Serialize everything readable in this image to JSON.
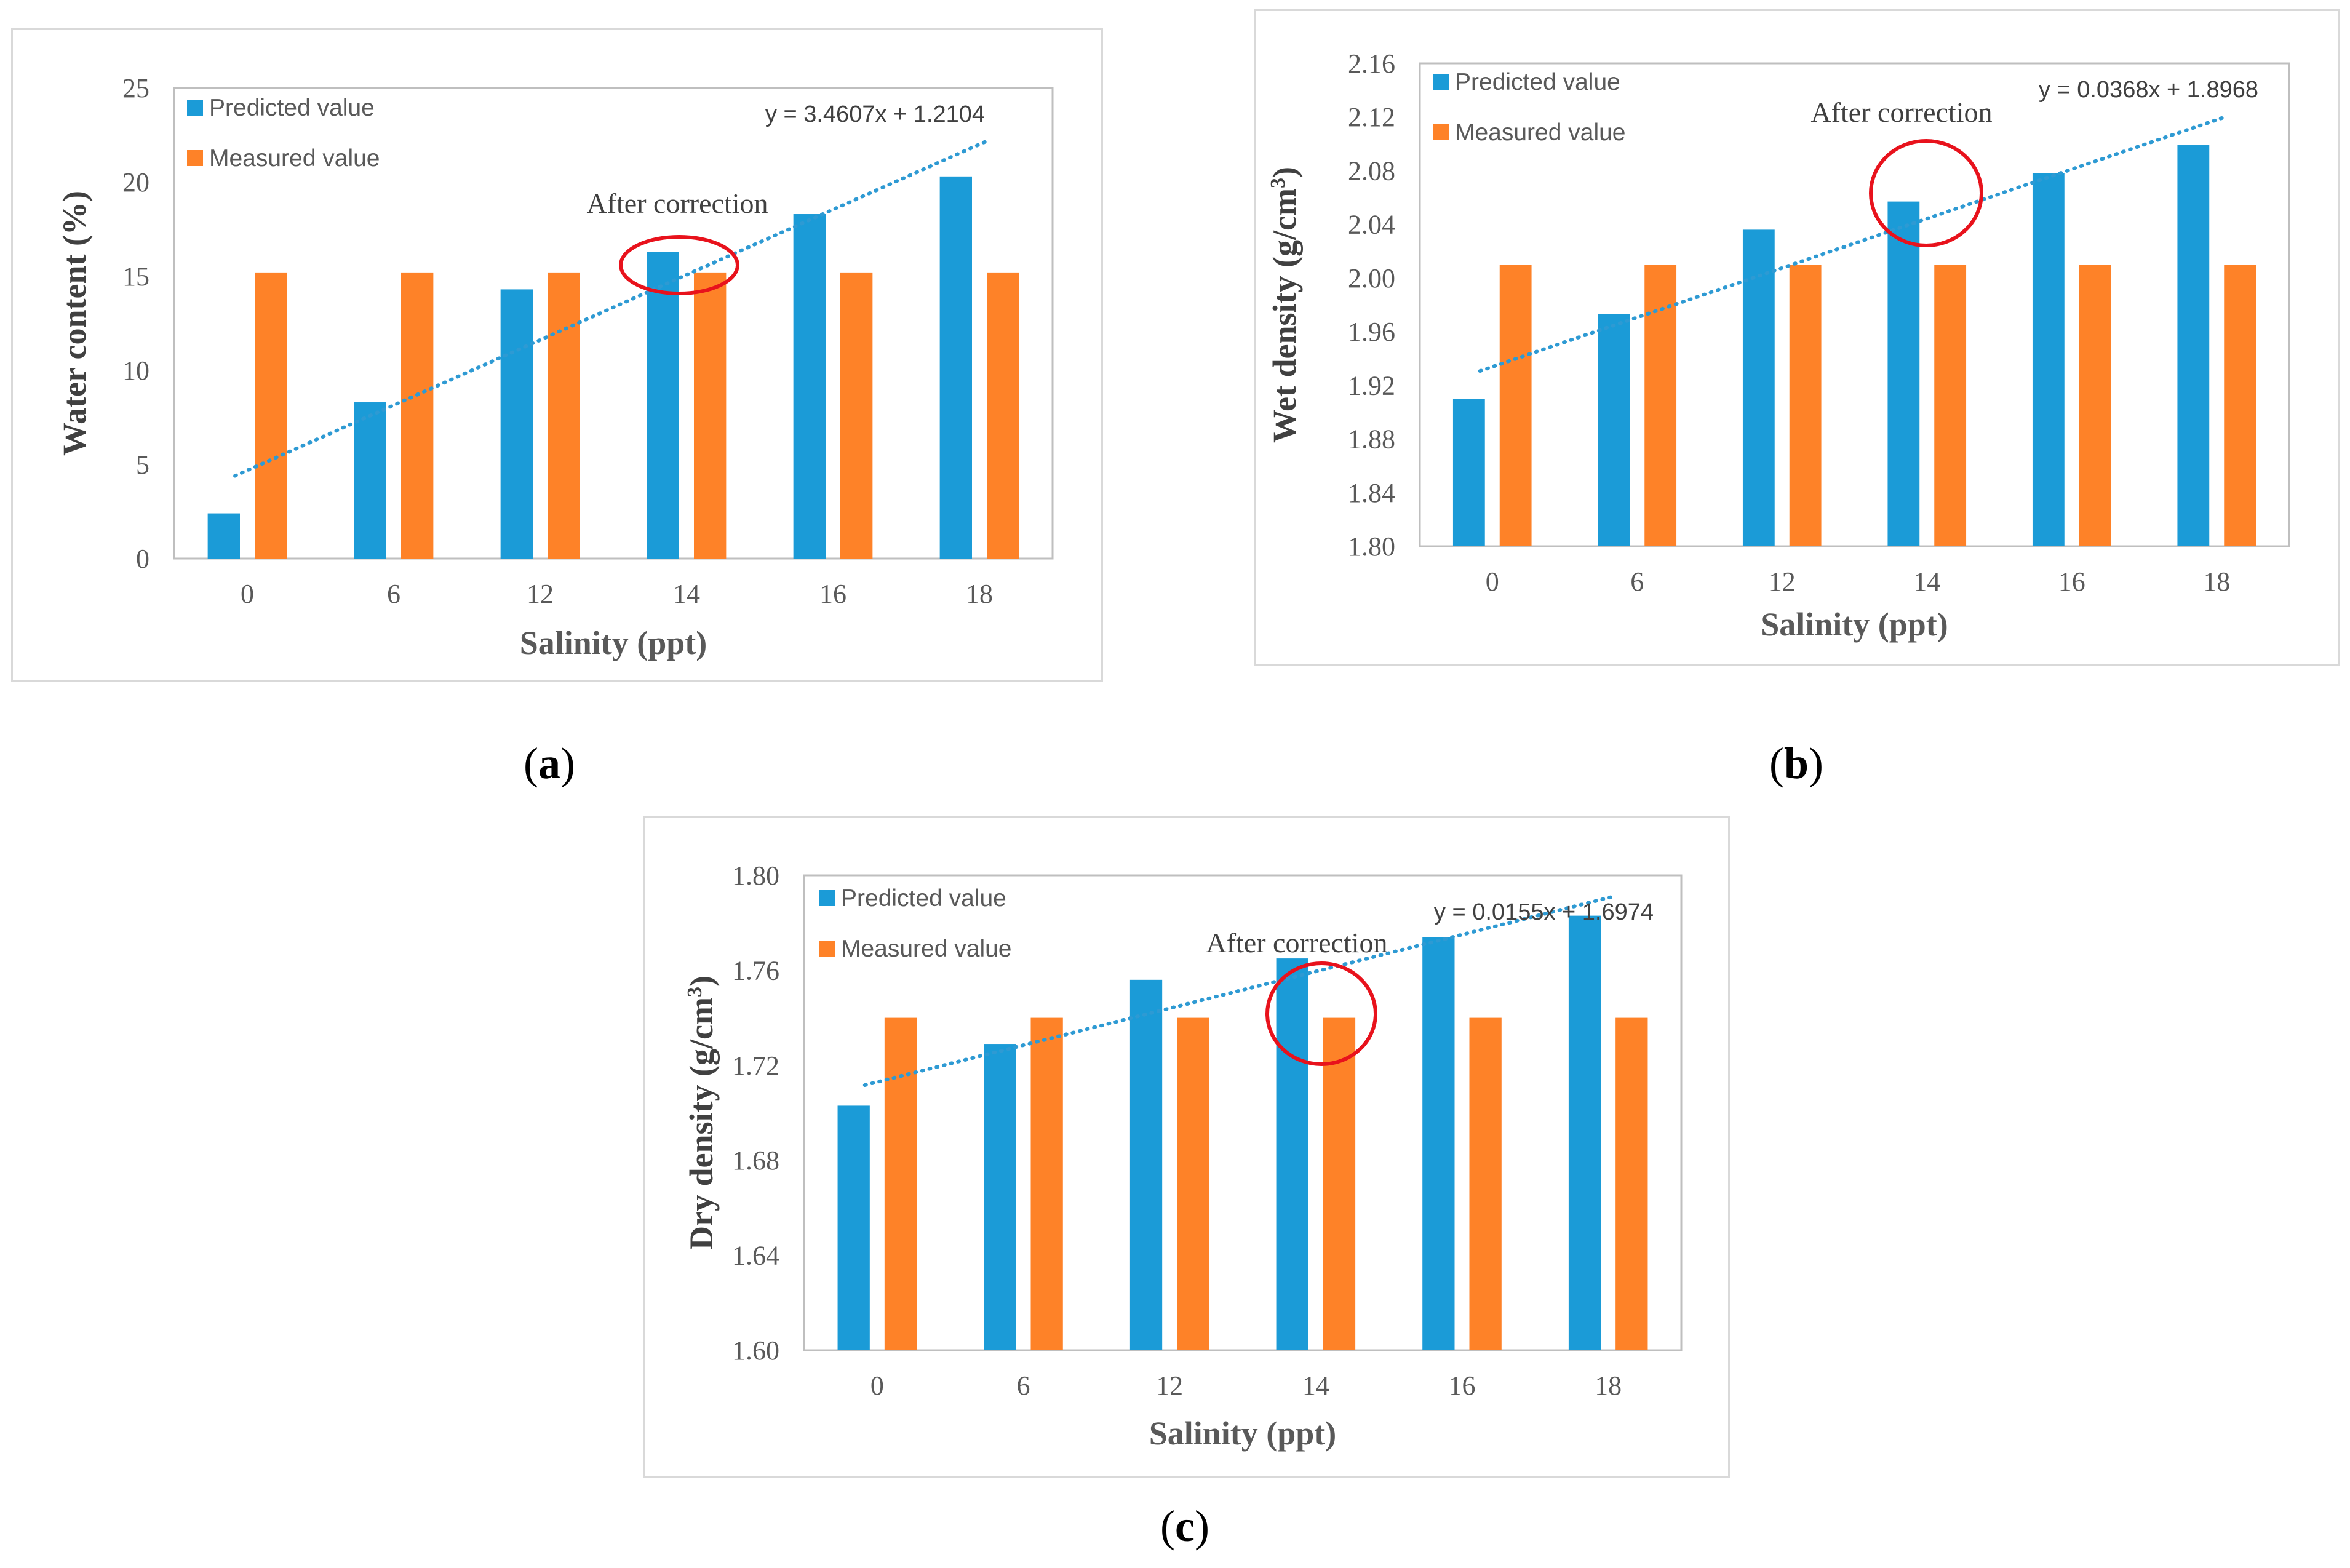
{
  "colors": {
    "predicted": "#1b9bd7",
    "measured": "#fe8228",
    "trend": "#2e9ad3",
    "circle": "#e8121c",
    "axis": "#bfbfbf",
    "text": "#595959"
  },
  "chart_data": [
    {
      "id": "a",
      "caption": "a",
      "type": "bar",
      "categories": [
        "0",
        "6",
        "12",
        "14",
        "16",
        "18"
      ],
      "series": [
        {
          "name": "Predicted value",
          "values": [
            2.4,
            8.3,
            14.3,
            16.3,
            18.3,
            20.3
          ]
        },
        {
          "name": "Measured value",
          "values": [
            15.2,
            15.2,
            15.2,
            15.2,
            15.2,
            15.2
          ]
        }
      ],
      "xlabel": "Salinity (ppt)",
      "ylabel": "Water content (%)",
      "ylim": [
        0,
        25
      ],
      "yticks": [
        "0",
        "5",
        "10",
        "15",
        "20",
        "25"
      ],
      "trendline": {
        "equation": "y = 3.4607x + 1.2104",
        "slope": 3.4607,
        "intercept": 1.2104
      },
      "annotation": "After correction",
      "highlighted_category": "14",
      "legend": "top-left"
    },
    {
      "id": "b",
      "caption": "b",
      "type": "bar",
      "categories": [
        "0",
        "6",
        "12",
        "14",
        "16",
        "18"
      ],
      "series": [
        {
          "name": "Predicted value",
          "values": [
            1.91,
            1.973,
            2.036,
            2.057,
            2.078,
            2.099
          ]
        },
        {
          "name": "Measured value",
          "values": [
            2.01,
            2.01,
            2.01,
            2.01,
            2.01,
            2.01
          ]
        }
      ],
      "xlabel": "Salinity (ppt)",
      "ylabel": "Wet density (g/cm",
      "ylabel_sup": "3",
      "ylabel_end": ")",
      "ylim": [
        1.8,
        2.16
      ],
      "yticks": [
        "1.80",
        "1.84",
        "1.88",
        "1.92",
        "1.96",
        "2.00",
        "2.04",
        "2.08",
        "2.12",
        "2.16"
      ],
      "trendline": {
        "equation": "y = 0.0368x + 1.8968",
        "slope": 0.0368,
        "intercept": 1.8968
      },
      "annotation": "After correction",
      "highlighted_category": "14",
      "legend": "top-left"
    },
    {
      "id": "c",
      "caption": "c",
      "type": "bar",
      "categories": [
        "0",
        "6",
        "12",
        "14",
        "16",
        "18"
      ],
      "series": [
        {
          "name": "Predicted value",
          "values": [
            1.703,
            1.729,
            1.756,
            1.765,
            1.774,
            1.783
          ]
        },
        {
          "name": "Measured value",
          "values": [
            1.74,
            1.74,
            1.74,
            1.74,
            1.74,
            1.74
          ]
        }
      ],
      "xlabel": "Salinity (ppt)",
      "ylabel": "Dry density (g/cm",
      "ylabel_sup": "3",
      "ylabel_end": ")",
      "ylim": [
        1.6,
        1.8
      ],
      "yticks": [
        "1.60",
        "1.64",
        "1.68",
        "1.72",
        "1.76",
        "1.80"
      ],
      "trendline": {
        "equation": "y = 0.0155x + 1.6974",
        "slope": 0.0155,
        "intercept": 1.6974
      },
      "annotation": "After correction",
      "highlighted_category": "14",
      "legend": "top-left"
    }
  ]
}
